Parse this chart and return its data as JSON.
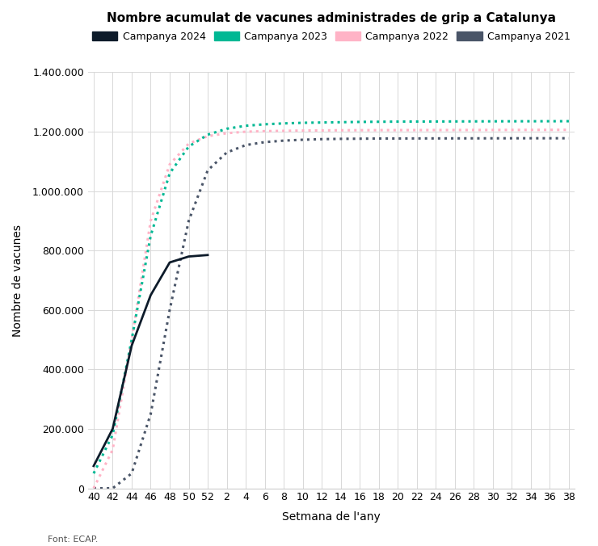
{
  "title": "Nombre acumulat de vacunes administrades de grip a Catalunya",
  "xlabel": "Setmana de l'any",
  "ylabel": "Nombre de vacunes",
  "footnote": "Font: ECAP.",
  "background_color": "#ffffff",
  "grid_color": "#d8d8d8",
  "ylim": [
    0,
    1400000
  ],
  "yticks": [
    0,
    200000,
    400000,
    600000,
    800000,
    1000000,
    1200000,
    1400000
  ],
  "xtick_labels": [
    "40",
    "42",
    "44",
    "46",
    "48",
    "50",
    "52",
    "2",
    "4",
    "6",
    "8",
    "10",
    "12",
    "14",
    "16",
    "18",
    "20",
    "22",
    "24",
    "26",
    "28",
    "30",
    "32",
    "34",
    "36",
    "38"
  ],
  "series": {
    "2024": {
      "label": "Campanya 2024",
      "color": "#0d1b2a",
      "linestyle": "solid",
      "linewidth": 2.0,
      "zorder": 5,
      "data": [
        75000,
        200000,
        480000,
        650000,
        760000,
        780000,
        785000
      ]
    },
    "2023": {
      "label": "Campanya 2023",
      "color": "#00b894",
      "linestyle": "dotted",
      "linewidth": 2.2,
      "zorder": 4,
      "data": [
        50000,
        180000,
        500000,
        850000,
        1060000,
        1150000,
        1190000,
        1210000,
        1220000,
        1225000,
        1228000,
        1230000,
        1231000,
        1232000,
        1233000,
        1233500,
        1234000,
        1234200,
        1234400,
        1234600,
        1234800,
        1235000,
        1235100,
        1235200,
        1235300,
        1235400
      ]
    },
    "2022": {
      "label": "Campanya 2022",
      "color": "#ffb3c6",
      "linestyle": "dotted",
      "linewidth": 2.2,
      "zorder": 3,
      "data": [
        0,
        130000,
        500000,
        900000,
        1090000,
        1160000,
        1185000,
        1195000,
        1200000,
        1202000,
        1203000,
        1204000,
        1204500,
        1205000,
        1205200,
        1205400,
        1205500,
        1205600,
        1205700,
        1205800,
        1205900,
        1206000,
        1206100,
        1206200,
        1206300,
        1206400
      ]
    },
    "2021": {
      "label": "Campanya 2021",
      "color": "#4a5568",
      "linestyle": "dotted",
      "linewidth": 2.2,
      "zorder": 2,
      "data": [
        0,
        0,
        50000,
        250000,
        600000,
        900000,
        1070000,
        1130000,
        1155000,
        1165000,
        1170000,
        1173000,
        1175000,
        1176000,
        1176500,
        1177000,
        1177200,
        1177400,
        1177500,
        1177600,
        1177700,
        1177800,
        1177900,
        1178000,
        1178000,
        1178000
      ]
    }
  }
}
